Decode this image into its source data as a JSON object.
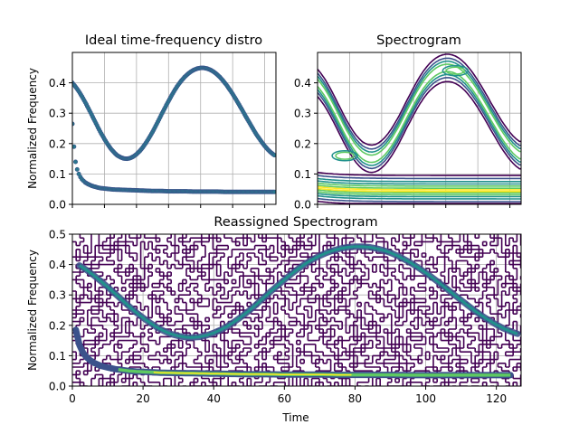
{
  "chart_data": [
    {
      "type": "scatter",
      "title": "Ideal time-frequency distro",
      "xlabel": "",
      "ylabel": "Normalized Frequency",
      "xlim": [
        0,
        127
      ],
      "ylim": [
        0,
        0.5
      ],
      "yticks": [
        0.0,
        0.1,
        0.2,
        0.3,
        0.4
      ],
      "xticks_labeled": false,
      "grid": true,
      "series": [
        {
          "color": "#2a788e",
          "marker": "dot",
          "description_of_curve": "sinusoidal FM",
          "x": [
            0,
            2,
            4,
            6,
            8,
            10,
            12,
            14,
            16,
            18,
            20,
            22,
            24,
            26,
            28,
            30,
            32,
            34,
            36,
            38,
            40,
            42,
            44,
            46,
            48,
            50,
            52,
            54,
            56,
            58,
            60,
            62,
            64,
            66,
            68,
            70,
            72,
            74,
            76,
            78,
            80,
            82,
            84,
            86,
            88,
            90,
            92,
            94,
            96,
            98,
            100,
            102,
            104,
            106,
            108,
            110,
            112,
            114,
            116,
            118,
            120,
            122,
            124,
            126
          ],
          "y": [
            0.4,
            0.387,
            0.372,
            0.355,
            0.336,
            0.316,
            0.295,
            0.274,
            0.253,
            0.233,
            0.215,
            0.198,
            0.183,
            0.171,
            0.161,
            0.155,
            0.151,
            0.15,
            0.152,
            0.157,
            0.165,
            0.175,
            0.188,
            0.203,
            0.22,
            0.238,
            0.258,
            0.279,
            0.3,
            0.32,
            0.34,
            0.359,
            0.377,
            0.393,
            0.407,
            0.419,
            0.429,
            0.437,
            0.443,
            0.447,
            0.449,
            0.449,
            0.447,
            0.443,
            0.437,
            0.429,
            0.419,
            0.407,
            0.394,
            0.379,
            0.363,
            0.346,
            0.328,
            0.31,
            0.291,
            0.273,
            0.255,
            0.237,
            0.221,
            0.206,
            0.192,
            0.18,
            0.17,
            0.162
          ]
        },
        {
          "color": "#2a788e",
          "marker": "dot",
          "x": [
            0,
            1,
            2,
            3,
            4,
            5,
            6,
            7,
            8,
            10,
            12,
            14,
            16,
            18,
            20,
            25,
            30,
            35,
            40,
            45,
            50,
            55,
            60,
            65,
            70,
            75,
            80,
            85,
            90,
            95,
            100,
            105,
            110,
            115,
            120,
            126
          ],
          "y": [
            0.265,
            0.19,
            0.14,
            0.115,
            0.1,
            0.09,
            0.082,
            0.077,
            0.072,
            0.066,
            0.061,
            0.058,
            0.055,
            0.053,
            0.052,
            0.049,
            0.048,
            0.047,
            0.046,
            0.045,
            0.044,
            0.044,
            0.043,
            0.043,
            0.043,
            0.042,
            0.042,
            0.042,
            0.042,
            0.041,
            0.041,
            0.041,
            0.041,
            0.041,
            0.041,
            0.041
          ]
        }
      ]
    },
    {
      "type": "contour",
      "title": "Spectrogram",
      "xlabel": "",
      "ylabel": "",
      "xlim": [
        0,
        127
      ],
      "ylim": [
        0,
        0.5
      ],
      "yticks": [
        0.0,
        0.1,
        0.2,
        0.3,
        0.4
      ],
      "xticks_labeled": false,
      "grid": true,
      "colormap": [
        "#440154",
        "#3b528b",
        "#21918c",
        "#5ec962",
        "#fde725"
      ]
    },
    {
      "type": "contour",
      "title": "Reassigned Spectrogram",
      "xlabel": "Time",
      "ylabel": "Normalized Frequency",
      "xlim": [
        0,
        127
      ],
      "ylim": [
        0,
        0.5
      ],
      "xticks": [
        0,
        20,
        40,
        60,
        80,
        100,
        120
      ],
      "yticks": [
        0.0,
        0.1,
        0.2,
        0.3,
        0.4,
        0.5
      ],
      "grid": true,
      "colormap": [
        "#440154",
        "#3b528b",
        "#21918c",
        "#5ec962",
        "#fde725"
      ]
    }
  ]
}
